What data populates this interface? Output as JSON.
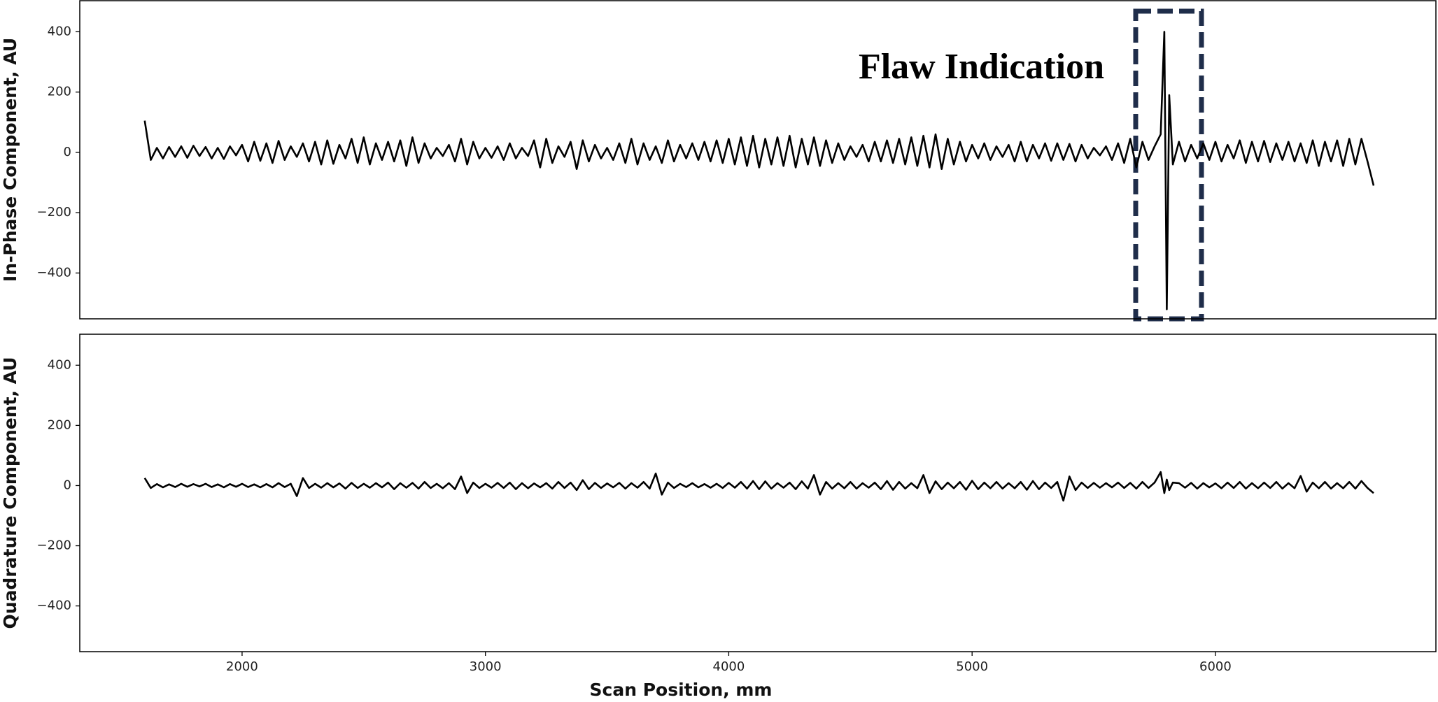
{
  "chart_data": [
    {
      "type": "line",
      "ylabel": "In-Phase Component, AU",
      "annotation": "Flaw Indication",
      "color": "#000000",
      "xlim": [
        1333,
        6906
      ],
      "ylim": [
        -552,
        503
      ],
      "yticks": [
        {
          "value": -400,
          "label": "−400"
        },
        {
          "value": -200,
          "label": "−200"
        },
        0,
        200,
        400
      ],
      "x": [
        1600,
        1625,
        1650,
        1675,
        1700,
        1725,
        1750,
        1775,
        1800,
        1825,
        1850,
        1875,
        1900,
        1925,
        1950,
        1975,
        2000,
        2025,
        2050,
        2075,
        2100,
        2125,
        2150,
        2175,
        2200,
        2225,
        2250,
        2275,
        2300,
        2325,
        2350,
        2375,
        2400,
        2425,
        2450,
        2475,
        2500,
        2525,
        2550,
        2575,
        2600,
        2625,
        2650,
        2675,
        2700,
        2725,
        2750,
        2775,
        2800,
        2825,
        2850,
        2875,
        2900,
        2925,
        2950,
        2975,
        3000,
        3025,
        3050,
        3075,
        3100,
        3125,
        3150,
        3175,
        3200,
        3225,
        3250,
        3275,
        3300,
        3325,
        3350,
        3375,
        3400,
        3425,
        3450,
        3475,
        3500,
        3525,
        3550,
        3575,
        3600,
        3625,
        3650,
        3675,
        3700,
        3725,
        3750,
        3775,
        3800,
        3825,
        3850,
        3875,
        3900,
        3925,
        3950,
        3975,
        4000,
        4025,
        4050,
        4075,
        4100,
        4125,
        4150,
        4175,
        4200,
        4225,
        4250,
        4275,
        4300,
        4325,
        4350,
        4375,
        4400,
        4425,
        4450,
        4475,
        4500,
        4525,
        4550,
        4575,
        4600,
        4625,
        4650,
        4675,
        4700,
        4725,
        4750,
        4775,
        4800,
        4825,
        4850,
        4875,
        4900,
        4925,
        4950,
        4975,
        5000,
        5025,
        5050,
        5075,
        5100,
        5125,
        5150,
        5175,
        5200,
        5225,
        5250,
        5275,
        5300,
        5325,
        5350,
        5375,
        5400,
        5425,
        5450,
        5475,
        5500,
        5525,
        5550,
        5575,
        5600,
        5625,
        5650,
        5675,
        5700,
        5725,
        5750,
        5775,
        5790,
        5800,
        5810,
        5825,
        5850,
        5875,
        5900,
        5925,
        5950,
        5975,
        6000,
        6025,
        6050,
        6075,
        6100,
        6125,
        6150,
        6175,
        6200,
        6225,
        6250,
        6275,
        6300,
        6325,
        6350,
        6375,
        6400,
        6425,
        6450,
        6475,
        6500,
        6525,
        6550,
        6575,
        6600,
        6625,
        6650
      ],
      "values": [
        105,
        -25,
        15,
        -20,
        18,
        -15,
        20,
        -18,
        22,
        -12,
        18,
        -20,
        15,
        -22,
        20,
        -10,
        25,
        -30,
        35,
        -28,
        30,
        -35,
        38,
        -25,
        20,
        -15,
        30,
        -30,
        35,
        -40,
        40,
        -38,
        25,
        -20,
        45,
        -35,
        50,
        -40,
        30,
        -25,
        35,
        -30,
        40,
        -45,
        50,
        -35,
        30,
        -20,
        15,
        -12,
        25,
        -30,
        45,
        -40,
        35,
        -20,
        15,
        -18,
        20,
        -25,
        30,
        -20,
        15,
        -12,
        40,
        -50,
        45,
        -35,
        20,
        -15,
        35,
        -55,
        40,
        -30,
        25,
        -20,
        15,
        -25,
        30,
        -35,
        45,
        -40,
        30,
        -25,
        20,
        -35,
        40,
        -30,
        25,
        -20,
        30,
        -25,
        35,
        -30,
        40,
        -35,
        45,
        -40,
        50,
        -45,
        55,
        -50,
        45,
        -40,
        50,
        -45,
        55,
        -50,
        45,
        -40,
        50,
        -45,
        40,
        -35,
        30,
        -25,
        20,
        -15,
        25,
        -30,
        35,
        -30,
        40,
        -35,
        45,
        -40,
        50,
        -45,
        55,
        -50,
        60,
        -55,
        45,
        -40,
        35,
        -30,
        25,
        -20,
        30,
        -25,
        20,
        -15,
        25,
        -30,
        35,
        -30,
        25,
        -20,
        30,
        -28,
        30,
        -25,
        28,
        -30,
        25,
        -20,
        15,
        -10,
        20,
        -25,
        30,
        -35,
        45,
        -50,
        35,
        -25,
        20,
        60,
        400,
        -520,
        190,
        -40,
        35,
        -30,
        25,
        -20,
        30,
        -25,
        35,
        -30,
        25,
        -20,
        40,
        -35,
        35,
        -30,
        38,
        -32,
        30,
        -25,
        35,
        -30,
        30,
        -35,
        40,
        -45,
        35,
        -30,
        40,
        -45,
        45,
        -40,
        45,
        -30,
        -110
      ]
    },
    {
      "type": "line",
      "ylabel": "Quadrature Component, AU",
      "xlabel": "Scan Position, mm",
      "color": "#000000",
      "xlim": [
        1333,
        6906
      ],
      "ylim": [
        -552,
        503
      ],
      "yticks": [
        {
          "value": -400,
          "label": "−400"
        },
        {
          "value": -200,
          "label": "−200"
        },
        0,
        200,
        400
      ],
      "xticks": [
        2000,
        3000,
        4000,
        5000,
        6000
      ],
      "x": [
        1600,
        1625,
        1650,
        1675,
        1700,
        1725,
        1750,
        1775,
        1800,
        1825,
        1850,
        1875,
        1900,
        1925,
        1950,
        1975,
        2000,
        2025,
        2050,
        2075,
        2100,
        2125,
        2150,
        2175,
        2200,
        2225,
        2250,
        2275,
        2300,
        2325,
        2350,
        2375,
        2400,
        2425,
        2450,
        2475,
        2500,
        2525,
        2550,
        2575,
        2600,
        2625,
        2650,
        2675,
        2700,
        2725,
        2750,
        2775,
        2800,
        2825,
        2850,
        2875,
        2900,
        2925,
        2950,
        2975,
        3000,
        3025,
        3050,
        3075,
        3100,
        3125,
        3150,
        3175,
        3200,
        3225,
        3250,
        3275,
        3300,
        3325,
        3350,
        3375,
        3400,
        3425,
        3450,
        3475,
        3500,
        3525,
        3550,
        3575,
        3600,
        3625,
        3650,
        3675,
        3700,
        3725,
        3750,
        3775,
        3800,
        3825,
        3850,
        3875,
        3900,
        3925,
        3950,
        3975,
        4000,
        4025,
        4050,
        4075,
        4100,
        4125,
        4150,
        4175,
        4200,
        4225,
        4250,
        4275,
        4300,
        4325,
        4350,
        4375,
        4400,
        4425,
        4450,
        4475,
        4500,
        4525,
        4550,
        4575,
        4600,
        4625,
        4650,
        4675,
        4700,
        4725,
        4750,
        4775,
        4800,
        4825,
        4850,
        4875,
        4900,
        4925,
        4950,
        4975,
        5000,
        5025,
        5050,
        5075,
        5100,
        5125,
        5150,
        5175,
        5200,
        5225,
        5250,
        5275,
        5300,
        5325,
        5350,
        5375,
        5400,
        5425,
        5450,
        5475,
        5500,
        5525,
        5550,
        5575,
        5600,
        5625,
        5650,
        5675,
        5700,
        5725,
        5750,
        5775,
        5790,
        5800,
        5810,
        5825,
        5850,
        5875,
        5900,
        5925,
        5950,
        5975,
        6000,
        6025,
        6050,
        6075,
        6100,
        6125,
        6150,
        6175,
        6200,
        6225,
        6250,
        6275,
        6300,
        6325,
        6350,
        6375,
        6400,
        6425,
        6450,
        6475,
        6500,
        6525,
        6550,
        6575,
        6600,
        6625,
        6650
      ],
      "values": [
        25,
        -8,
        5,
        -6,
        4,
        -5,
        6,
        -4,
        5,
        -3,
        6,
        -5,
        4,
        -6,
        5,
        -4,
        6,
        -5,
        4,
        -6,
        5,
        -6,
        8,
        -5,
        6,
        -35,
        25,
        -8,
        6,
        -7,
        8,
        -6,
        7,
        -10,
        9,
        -8,
        6,
        -7,
        8,
        -6,
        10,
        -12,
        8,
        -7,
        9,
        -10,
        12,
        -8,
        6,
        -9,
        8,
        -12,
        30,
        -25,
        10,
        -8,
        6,
        -7,
        9,
        -8,
        10,
        -12,
        8,
        -9,
        7,
        -6,
        8,
        -10,
        12,
        -8,
        10,
        -15,
        18,
        -12,
        9,
        -8,
        7,
        -6,
        9,
        -10,
        8,
        -7,
        12,
        -10,
        40,
        -30,
        10,
        -8,
        6,
        -5,
        8,
        -6,
        5,
        -7,
        6,
        -8,
        9,
        -7,
        12,
        -10,
        15,
        -12,
        14,
        -10,
        8,
        -7,
        10,
        -12,
        14,
        -10,
        35,
        -30,
        12,
        -10,
        8,
        -9,
        12,
        -10,
        8,
        -7,
        10,
        -12,
        15,
        -14,
        12,
        -10,
        8,
        -9,
        35,
        -25,
        14,
        -12,
        10,
        -9,
        12,
        -14,
        16,
        -12,
        10,
        -9,
        12,
        -10,
        8,
        -9,
        12,
        -14,
        15,
        -12,
        10,
        -8,
        12,
        -50,
        30,
        -15,
        10,
        -8,
        9,
        -7,
        8,
        -6,
        10,
        -8,
        9,
        -10,
        12,
        -8,
        10,
        45,
        -25,
        20,
        -15,
        10,
        8,
        -7,
        9,
        -10,
        8,
        -6,
        7,
        -9,
        10,
        -8,
        12,
        -10,
        8,
        -9,
        10,
        -8,
        12,
        -10,
        8,
        -9,
        32,
        -20,
        10,
        -9,
        12,
        -10,
        8,
        -9,
        12,
        -10,
        15,
        -8,
        -25
      ]
    }
  ]
}
